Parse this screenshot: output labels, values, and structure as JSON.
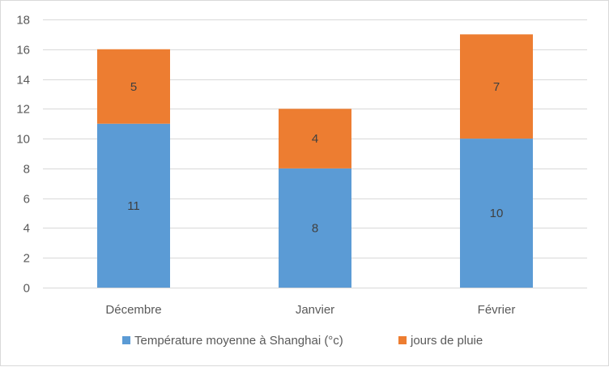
{
  "chart_data": {
    "type": "bar",
    "stacked": true,
    "categories": [
      "Décembre",
      "Janvier",
      "Février"
    ],
    "series": [
      {
        "name": "Température moyenne à Shanghai (°c)",
        "values": [
          11,
          8,
          10
        ],
        "color": "#5b9bd5"
      },
      {
        "name": "jours de pluie",
        "values": [
          5,
          4,
          7
        ],
        "color": "#ed7d31"
      }
    ],
    "ylim": [
      0,
      18
    ],
    "yticks": [
      0,
      2,
      4,
      6,
      8,
      10,
      12,
      14,
      16,
      18
    ],
    "grid": true,
    "legend": "bottom",
    "title": "",
    "xlabel": "",
    "ylabel": ""
  }
}
